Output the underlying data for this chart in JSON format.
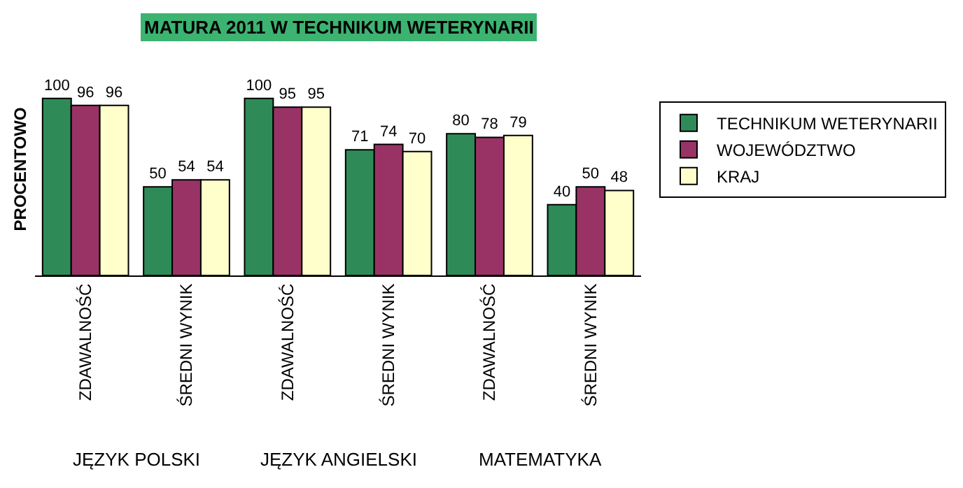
{
  "chart_data": {
    "type": "bar",
    "title": "MATURA 2011 W TECHNIKUM WETERYNARII",
    "ylabel": "PROCENTOWO",
    "categories": [
      "ZDAWALNOŚĆ",
      "ŚREDNI WYNIK",
      "ZDAWALNOŚĆ",
      "ŚREDNI WYNIK",
      "ZDAWALNOŚĆ",
      "ŚREDNI WYNIK"
    ],
    "annotations": [
      "JĘZYK POLSKI",
      "JĘZYK ANGIELSKI",
      "MATEMATYKA"
    ],
    "series": [
      {
        "name": "TECHNIKUM WETERYNARII",
        "color": "#2e8b57",
        "values": [
          100,
          50,
          100,
          71,
          80,
          40
        ]
      },
      {
        "name": "WOJEWÓDZTWO",
        "color": "#993366",
        "values": [
          96,
          54,
          95,
          74,
          78,
          50
        ]
      },
      {
        "name": "KRAJ",
        "color": "#ffffcc",
        "values": [
          96,
          54,
          95,
          70,
          79,
          48
        ]
      }
    ],
    "data_labels": true,
    "legend": "right"
  }
}
